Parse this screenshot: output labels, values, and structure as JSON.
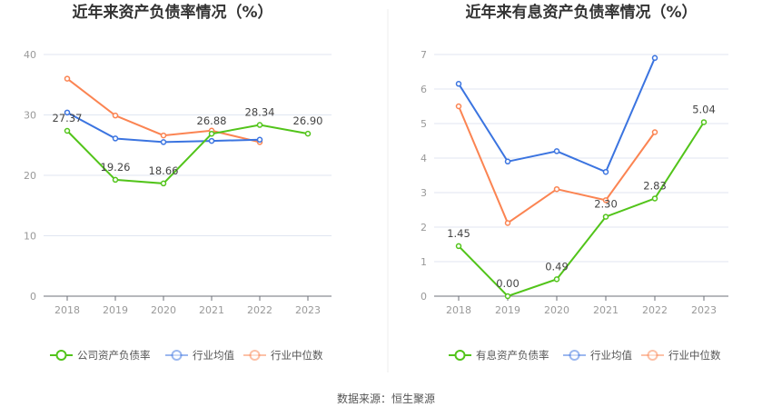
{
  "source": "数据来源：恒生聚源",
  "chart_data": [
    {
      "type": "line",
      "title": "近年来资产负债率情况（%）",
      "categories": [
        "2018",
        "2019",
        "2020",
        "2021",
        "2022",
        "2023"
      ],
      "ylim": [
        0,
        40
      ],
      "yticks": [
        0,
        10,
        20,
        30,
        40
      ],
      "grid": true,
      "legend": "bottom",
      "series": [
        {
          "name": "公司资产负债率",
          "color": "#52c41a",
          "values": [
            27.37,
            19.26,
            18.66,
            26.88,
            28.34,
            26.9
          ],
          "labels": [
            "27.37",
            "19.26",
            "18.66",
            "26.88",
            "28.34",
            "26.90"
          ]
        },
        {
          "name": "行业均值",
          "color": "#3b74e0",
          "values": [
            30.4,
            26.1,
            25.5,
            25.7,
            25.9,
            null
          ]
        },
        {
          "name": "行业中位数",
          "color": "#fb8452",
          "values": [
            36.0,
            29.9,
            26.6,
            27.4,
            25.5,
            null
          ]
        }
      ]
    },
    {
      "type": "line",
      "title": "近年来有息资产负债率情况（%）",
      "categories": [
        "2018",
        "2019",
        "2020",
        "2021",
        "2022",
        "2023"
      ],
      "ylim": [
        0,
        7
      ],
      "yticks": [
        0,
        1,
        2,
        3,
        4,
        5,
        6,
        7
      ],
      "grid": true,
      "legend": "bottom",
      "series": [
        {
          "name": "有息资产负债率",
          "color": "#52c41a",
          "values": [
            1.45,
            0.0,
            0.49,
            2.3,
            2.83,
            5.04
          ],
          "labels": [
            "1.45",
            "0.00",
            "0.49",
            "2.30",
            "2.83",
            "5.04"
          ]
        },
        {
          "name": "行业均值",
          "color": "#3b74e0",
          "values": [
            6.15,
            3.9,
            4.2,
            3.6,
            6.9,
            null
          ]
        },
        {
          "name": "行业中位数",
          "color": "#fb8452",
          "values": [
            5.5,
            2.12,
            3.1,
            2.78,
            4.75,
            null
          ]
        }
      ]
    }
  ]
}
